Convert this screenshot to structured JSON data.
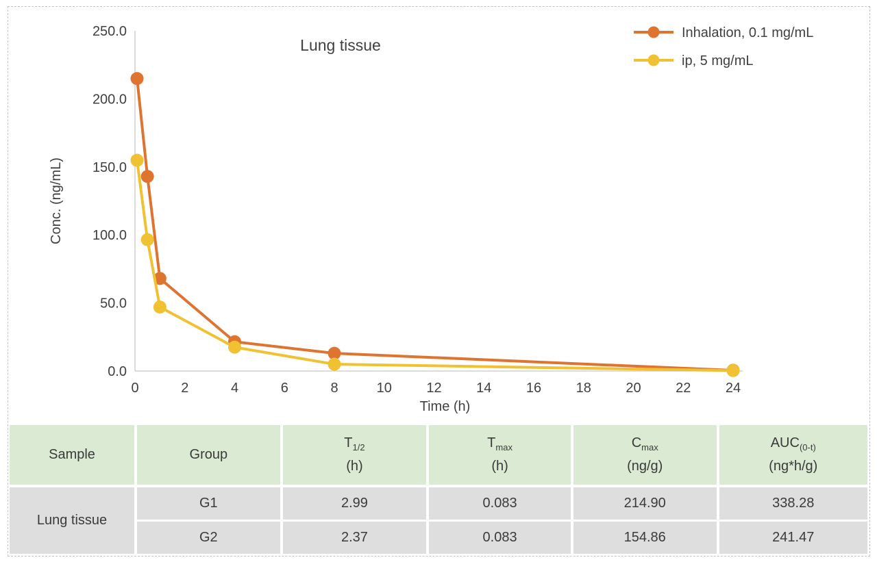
{
  "chart_data": {
    "type": "line",
    "title": "Lung tissue",
    "xlabel": "Time (h)",
    "ylabel": "Conc. (ng/mL)",
    "xlim": [
      0,
      24
    ],
    "ylim": [
      0,
      250
    ],
    "grid": "off",
    "legend_position": "top-right",
    "yticks": [
      {
        "value": 0,
        "label": "0.0"
      },
      {
        "value": 50,
        "label": "50.0"
      },
      {
        "value": 100,
        "label": "100.0"
      },
      {
        "value": 150,
        "label": "150.0"
      },
      {
        "value": 200,
        "label": "200.0"
      },
      {
        "value": 250,
        "label": "250.0"
      }
    ],
    "xticks": [
      {
        "value": 0,
        "label": "0"
      },
      {
        "value": 2,
        "label": "2"
      },
      {
        "value": 4,
        "label": "4"
      },
      {
        "value": 6,
        "label": "6"
      },
      {
        "value": 8,
        "label": "8"
      },
      {
        "value": 10,
        "label": "10"
      },
      {
        "value": 12,
        "label": "12"
      },
      {
        "value": 14,
        "label": "14"
      },
      {
        "value": 16,
        "label": "16"
      },
      {
        "value": 18,
        "label": "18"
      },
      {
        "value": 20,
        "label": "20"
      },
      {
        "value": 22,
        "label": "22"
      },
      {
        "value": 24,
        "label": "24"
      }
    ],
    "series": [
      {
        "name": "Inhalation, 0.1 mg/mL",
        "color": "#de7430",
        "x": [
          0.083,
          0.5,
          1,
          4,
          8,
          24
        ],
        "y": [
          214.9,
          143,
          68,
          21.5,
          13,
          0.5
        ]
      },
      {
        "name": "ip, 5 mg/mL",
        "color": "#f0c233",
        "x": [
          0.083,
          0.5,
          1,
          4,
          8,
          24
        ],
        "y": [
          154.86,
          96.5,
          47,
          17.5,
          5,
          0.3
        ]
      }
    ]
  },
  "table": {
    "header_bg": "#dbead3",
    "body_bg": "#dedede",
    "headers": {
      "sample": {
        "main": "Sample"
      },
      "group": {
        "main": "Group"
      },
      "t_half": {
        "main": "T",
        "sub": "1/2",
        "unit": "(h)"
      },
      "t_max": {
        "main": "T",
        "sub": "max",
        "unit": "(h)"
      },
      "c_max": {
        "main": "C",
        "sub": "max",
        "unit": "(ng/g)"
      },
      "auc": {
        "main": "AUC",
        "sub": "(0-t)",
        "unit": "(ng*h/g)"
      }
    },
    "sample_label": "Lung tissue",
    "rows": [
      {
        "group": "G1",
        "t_half": "2.99",
        "t_max": "0.083",
        "c_max": "214.90",
        "auc": "338.28"
      },
      {
        "group": "G2",
        "t_half": "2.37",
        "t_max": "0.083",
        "c_max": "154.86",
        "auc": "241.47"
      }
    ]
  }
}
